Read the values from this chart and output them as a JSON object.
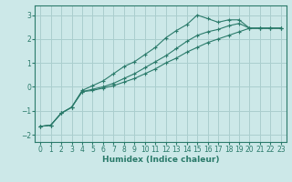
{
  "xlabel": "Humidex (Indice chaleur)",
  "bg_color": "#cce8e8",
  "grid_color": "#aacece",
  "line_color": "#2a7a6a",
  "xlim": [
    -0.5,
    23.5
  ],
  "ylim": [
    -2.3,
    3.4
  ],
  "xticks": [
    0,
    1,
    2,
    3,
    4,
    5,
    6,
    7,
    8,
    9,
    10,
    11,
    12,
    13,
    14,
    15,
    16,
    17,
    18,
    19,
    20,
    21,
    22,
    23
  ],
  "yticks": [
    -2,
    -1,
    0,
    1,
    2,
    3
  ],
  "line1_x": [
    0,
    1,
    2,
    3,
    4,
    5,
    6,
    7,
    8,
    9,
    10,
    11,
    12,
    13,
    14,
    15,
    16,
    17,
    18,
    19,
    20,
    21,
    22,
    23
  ],
  "line1_y": [
    -1.65,
    -1.6,
    -1.1,
    -0.85,
    -0.15,
    0.05,
    0.25,
    0.55,
    0.85,
    1.05,
    1.35,
    1.65,
    2.05,
    2.35,
    2.6,
    3.0,
    2.85,
    2.7,
    2.8,
    2.8,
    2.45,
    2.45,
    2.45,
    2.45
  ],
  "line2_x": [
    0,
    1,
    2,
    3,
    4,
    5,
    6,
    7,
    8,
    9,
    10,
    11,
    12,
    13,
    14,
    15,
    16,
    17,
    18,
    19,
    20,
    21,
    22,
    23
  ],
  "line2_y": [
    -1.65,
    -1.6,
    -1.1,
    -0.85,
    -0.2,
    -0.1,
    0.0,
    0.15,
    0.35,
    0.55,
    0.8,
    1.05,
    1.3,
    1.6,
    1.9,
    2.15,
    2.3,
    2.4,
    2.55,
    2.65,
    2.45,
    2.45,
    2.45,
    2.45
  ],
  "line3_x": [
    0,
    1,
    2,
    3,
    4,
    5,
    6,
    7,
    8,
    9,
    10,
    11,
    12,
    13,
    14,
    15,
    16,
    17,
    18,
    19,
    20,
    21,
    22,
    23
  ],
  "line3_y": [
    -1.65,
    -1.6,
    -1.1,
    -0.85,
    -0.2,
    -0.15,
    -0.05,
    0.05,
    0.2,
    0.35,
    0.55,
    0.75,
    1.0,
    1.2,
    1.45,
    1.65,
    1.85,
    2.0,
    2.15,
    2.3,
    2.45,
    2.45,
    2.45,
    2.45
  ]
}
